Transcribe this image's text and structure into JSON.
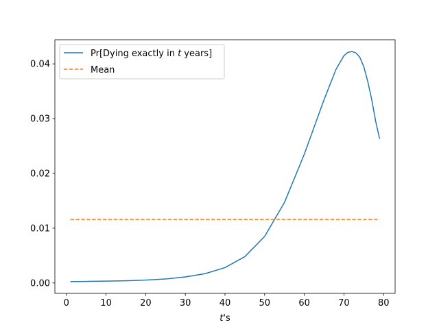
{
  "chart_data": {
    "type": "line",
    "xlabel_var": "t",
    "xlabel_suffix": "'s",
    "ylabel": "",
    "title": "",
    "xlim": [
      -2.9,
      82.9
    ],
    "ylim": [
      -0.0019,
      0.0444
    ],
    "xticks": [
      0,
      10,
      20,
      30,
      40,
      50,
      60,
      70,
      80
    ],
    "yticks": [
      0.0,
      0.01,
      0.02,
      0.03,
      0.04
    ],
    "ytick_labels": [
      "0.00",
      "0.01",
      "0.02",
      "0.03",
      "0.04"
    ],
    "grid": false,
    "legend_position": "upper-left",
    "legend": {
      "series1_prefix": "Pr[Dying exactly in ",
      "series1_var": "t",
      "series1_suffix": " years]",
      "series2": "Mean"
    },
    "series": [
      {
        "name": "Pr[Dying exactly in t years]",
        "color": "#1f77b4",
        "style": "solid",
        "x": [
          1,
          5,
          10,
          15,
          20,
          25,
          30,
          35,
          40,
          45,
          50,
          55,
          60,
          62,
          65,
          68,
          70,
          71,
          72,
          73,
          74,
          75,
          76,
          77,
          78,
          79
        ],
        "y": [
          0.00025,
          0.00028,
          0.00033,
          0.0004,
          0.00052,
          0.00072,
          0.0011,
          0.0017,
          0.0028,
          0.0048,
          0.0085,
          0.0147,
          0.0235,
          0.0275,
          0.0335,
          0.039,
          0.0415,
          0.0421,
          0.04225,
          0.042,
          0.0412,
          0.0395,
          0.0368,
          0.0335,
          0.0295,
          0.0263
        ]
      },
      {
        "name": "Mean",
        "color": "#ff7f0e",
        "style": "dashed",
        "x": [
          1,
          79
        ],
        "y": [
          0.0116,
          0.0116
        ]
      }
    ]
  }
}
